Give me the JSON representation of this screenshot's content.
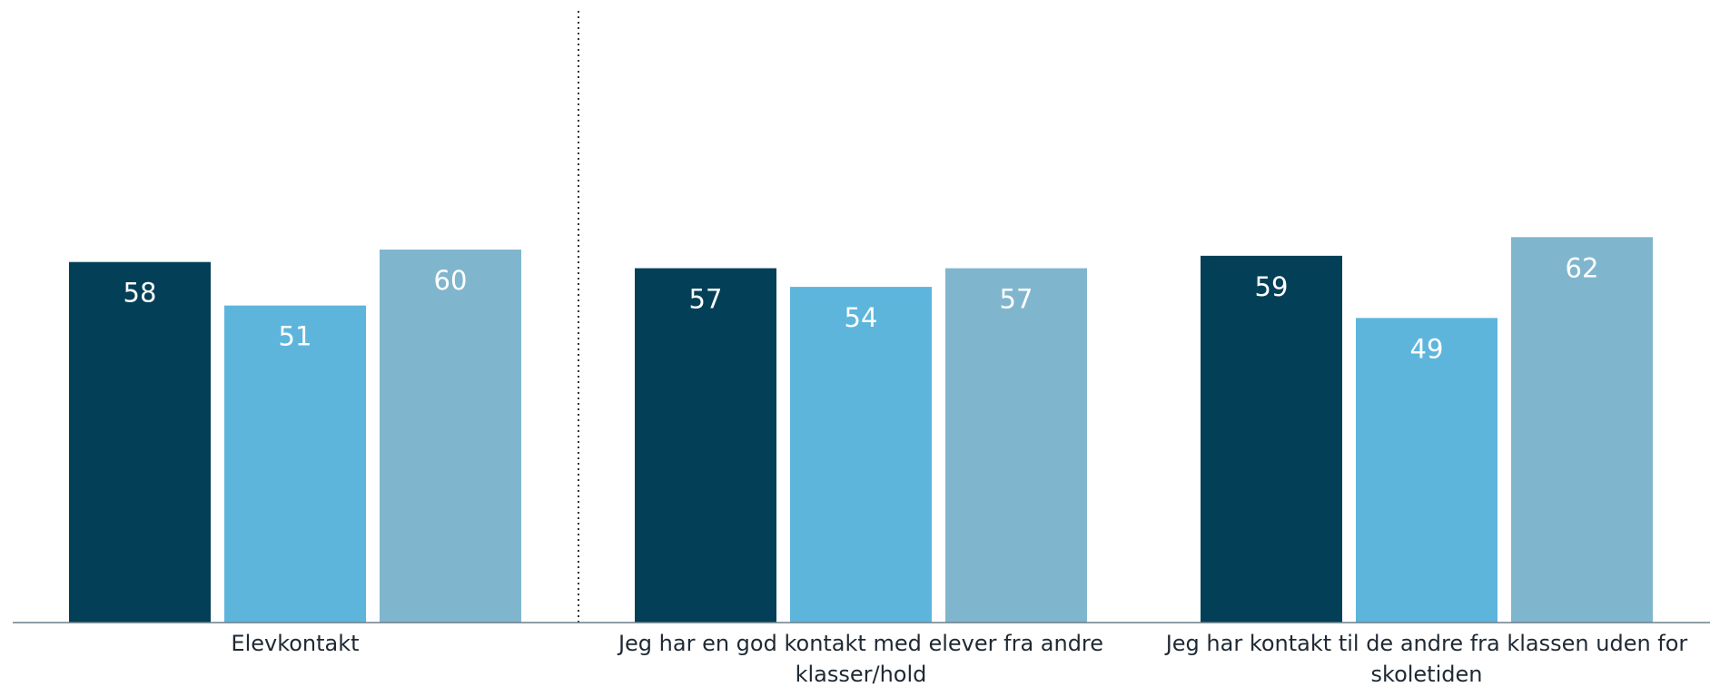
{
  "chart_data": {
    "type": "bar",
    "title": "",
    "xlabel": "",
    "ylabel": "",
    "ylim": [
      0,
      100
    ],
    "categories": [
      [
        "Elevkontakt"
      ],
      [
        "Jeg har en god kontakt med elever fra andre",
        "klasser/hold"
      ],
      [
        "Jeg har kontakt til de andre fra klassen uden for",
        "skoletiden"
      ]
    ],
    "series": [
      {
        "values": [
          58,
          57,
          59
        ],
        "color": "#034057"
      },
      {
        "values": [
          51,
          54,
          49
        ],
        "color": "#5eb5dc"
      },
      {
        "values": [
          60,
          57,
          62
        ],
        "color": "#80b6cd"
      }
    ],
    "separator_after_category": 0,
    "grid": false,
    "legend": "none"
  }
}
